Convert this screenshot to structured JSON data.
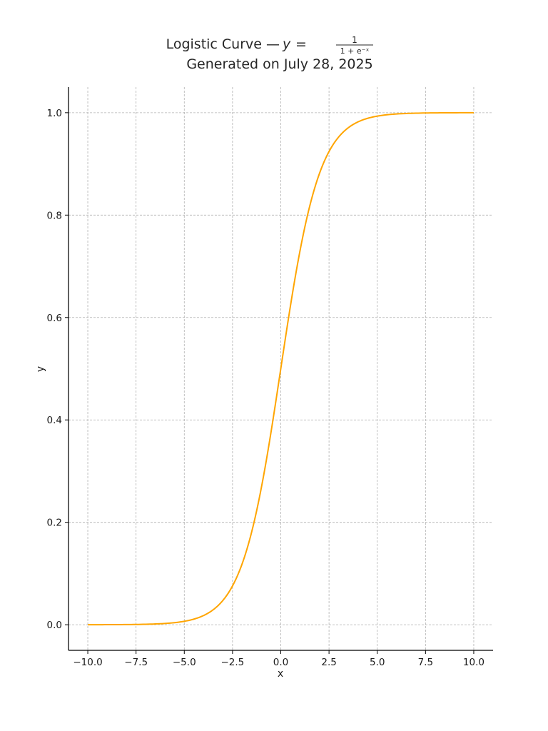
{
  "chart_data": {
    "type": "line",
    "title": "Logistic Curve — y = 1/(1 + e⁻ˣ)",
    "title_parts": {
      "prefix": "Logistic Curve — ",
      "lhs": "y",
      "equals": "=",
      "numerator": "1",
      "denominator": "1 + e⁻ˣ"
    },
    "subtitle": "Generated on July 28, 2025",
    "xlabel": "x",
    "ylabel": "y",
    "xlim": [
      -11.0,
      11.0
    ],
    "ylim": [
      -0.05,
      1.05
    ],
    "grid": true,
    "legend": "none",
    "x_ticks": [
      -10.0,
      -7.5,
      -5.0,
      -2.5,
      0.0,
      2.5,
      5.0,
      7.5,
      10.0
    ],
    "x_tick_labels": [
      "−10.0",
      "−7.5",
      "−5.0",
      "−2.5",
      "0.0",
      "2.5",
      "5.0",
      "7.5",
      "10.0"
    ],
    "y_ticks": [
      0.0,
      0.2,
      0.4,
      0.6,
      0.8,
      1.0
    ],
    "y_tick_labels": [
      "0.0",
      "0.2",
      "0.4",
      "0.6",
      "0.8",
      "1.0"
    ],
    "series": [
      {
        "color": "#ffa500",
        "x": [
          -10,
          -9,
          -8,
          -7,
          -6,
          -5,
          -4.5,
          -4,
          -3.5,
          -3,
          -2.5,
          -2,
          -1.5,
          -1,
          -0.5,
          0,
          0.5,
          1,
          1.5,
          2,
          2.5,
          3,
          3.5,
          4,
          4.5,
          5,
          6,
          7,
          8,
          9,
          10
        ],
        "y": [
          0.0,
          0.0001,
          0.0003,
          0.0009,
          0.0025,
          0.0067,
          0.011,
          0.018,
          0.0293,
          0.0474,
          0.0759,
          0.1192,
          0.1824,
          0.2689,
          0.3775,
          0.5,
          0.6225,
          0.7311,
          0.8176,
          0.8808,
          0.9241,
          0.9526,
          0.9707,
          0.982,
          0.989,
          0.9933,
          0.9975,
          0.9991,
          0.9997,
          0.9999,
          1.0
        ]
      }
    ]
  }
}
